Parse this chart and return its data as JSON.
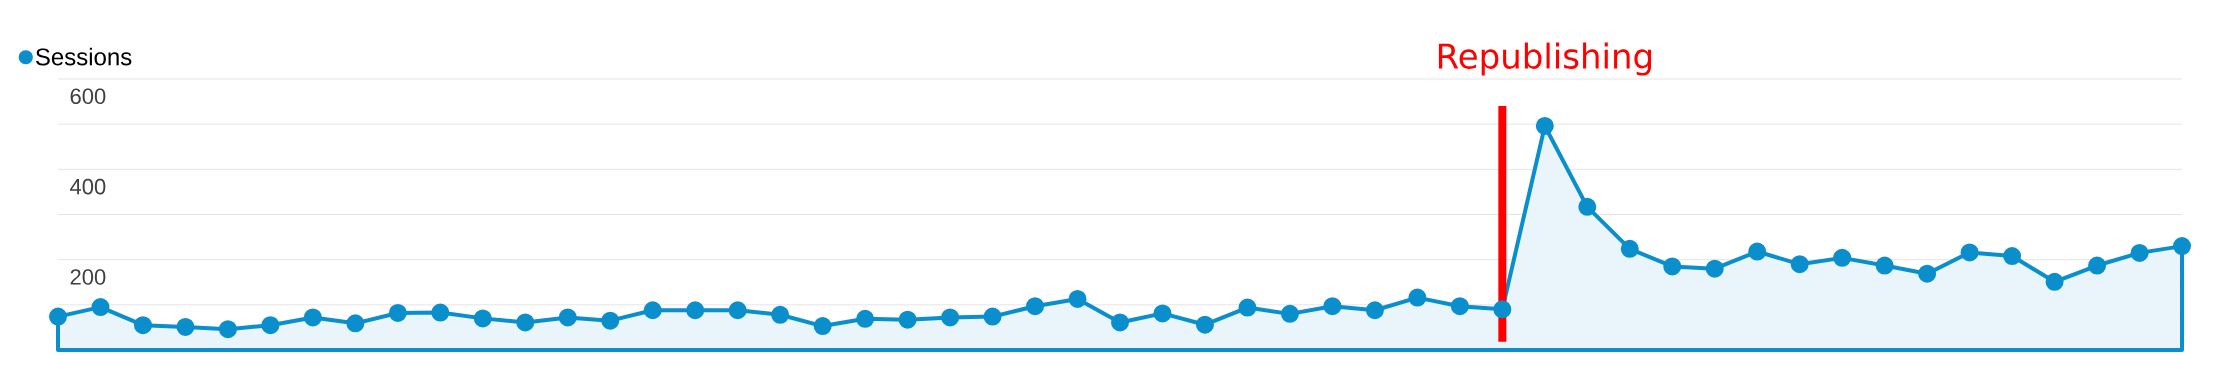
{
  "chart_data": {
    "type": "area",
    "categories": [
      null,
      null,
      null,
      null,
      null,
      null,
      null,
      null,
      null,
      null,
      null,
      null,
      null,
      null,
      null,
      null,
      null,
      null,
      null,
      null,
      null,
      null,
      null,
      null,
      null,
      null,
      null,
      null,
      null,
      null,
      null,
      null,
      null,
      null,
      null,
      null,
      null,
      null,
      null,
      null,
      null,
      null,
      null,
      null,
      null,
      null,
      null,
      null,
      null,
      null,
      null
    ],
    "series": [
      {
        "name": "Sessions",
        "color": "#0a8fcc",
        "values": [
          74,
          95,
          55,
          51,
          46,
          55,
          72,
          59,
          82,
          83,
          70,
          61,
          72,
          65,
          88,
          88,
          88,
          78,
          53,
          69,
          67,
          72,
          74,
          97,
          113,
          61,
          81,
          56,
          94,
          80,
          97,
          88,
          116,
          97,
          90,
          496,
          317,
          224,
          185,
          180,
          218,
          190,
          204,
          187,
          169,
          216,
          208,
          151,
          187,
          215,
          230
        ]
      }
    ],
    "ylim": [
      0,
      600
    ],
    "yticks": [
      {
        "value": 0,
        "label": null
      },
      {
        "value": 100,
        "label": null
      },
      200,
      {
        "value": 300,
        "label": null
      },
      400,
      {
        "value": 500,
        "label": null
      },
      600
    ],
    "grid": "y",
    "legend": "top left",
    "marker": "circle",
    "tick_labels": "y",
    "annotations": [
      "Republishing"
    ]
  }
}
